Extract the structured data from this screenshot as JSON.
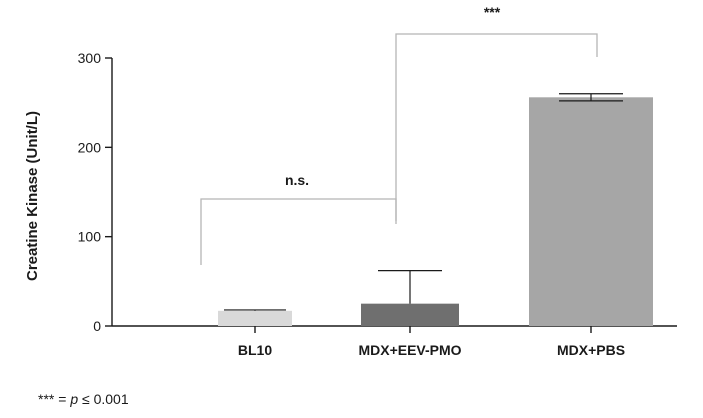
{
  "chart_data": {
    "type": "bar",
    "title": "",
    "xlabel": "",
    "ylabel": "Creatine Kinase (Unit/L)",
    "ylim": [
      0,
      300
    ],
    "yticks": [
      0,
      100,
      200,
      300
    ],
    "categories": [
      "BL10",
      "MDX+EEV-PMO",
      "MDX+PBS"
    ],
    "values": [
      17,
      25,
      256
    ],
    "error_upper": [
      1,
      37,
      4
    ],
    "error_lower": [
      0,
      0,
      4
    ],
    "bar_colors": [
      "#d9d9d9",
      "#6f6f6f",
      "#a6a6a6"
    ],
    "annotations": [
      {
        "label": "n.s.",
        "from": "BL10",
        "to": "MDX+EEV-PMO"
      },
      {
        "label": "***",
        "from": "MDX+EEV-PMO",
        "to": "MDX+PBS"
      }
    ]
  },
  "footnote": {
    "stars": "***",
    "equals": " = ",
    "p": "p",
    "condition": " ≤ 0.001"
  }
}
